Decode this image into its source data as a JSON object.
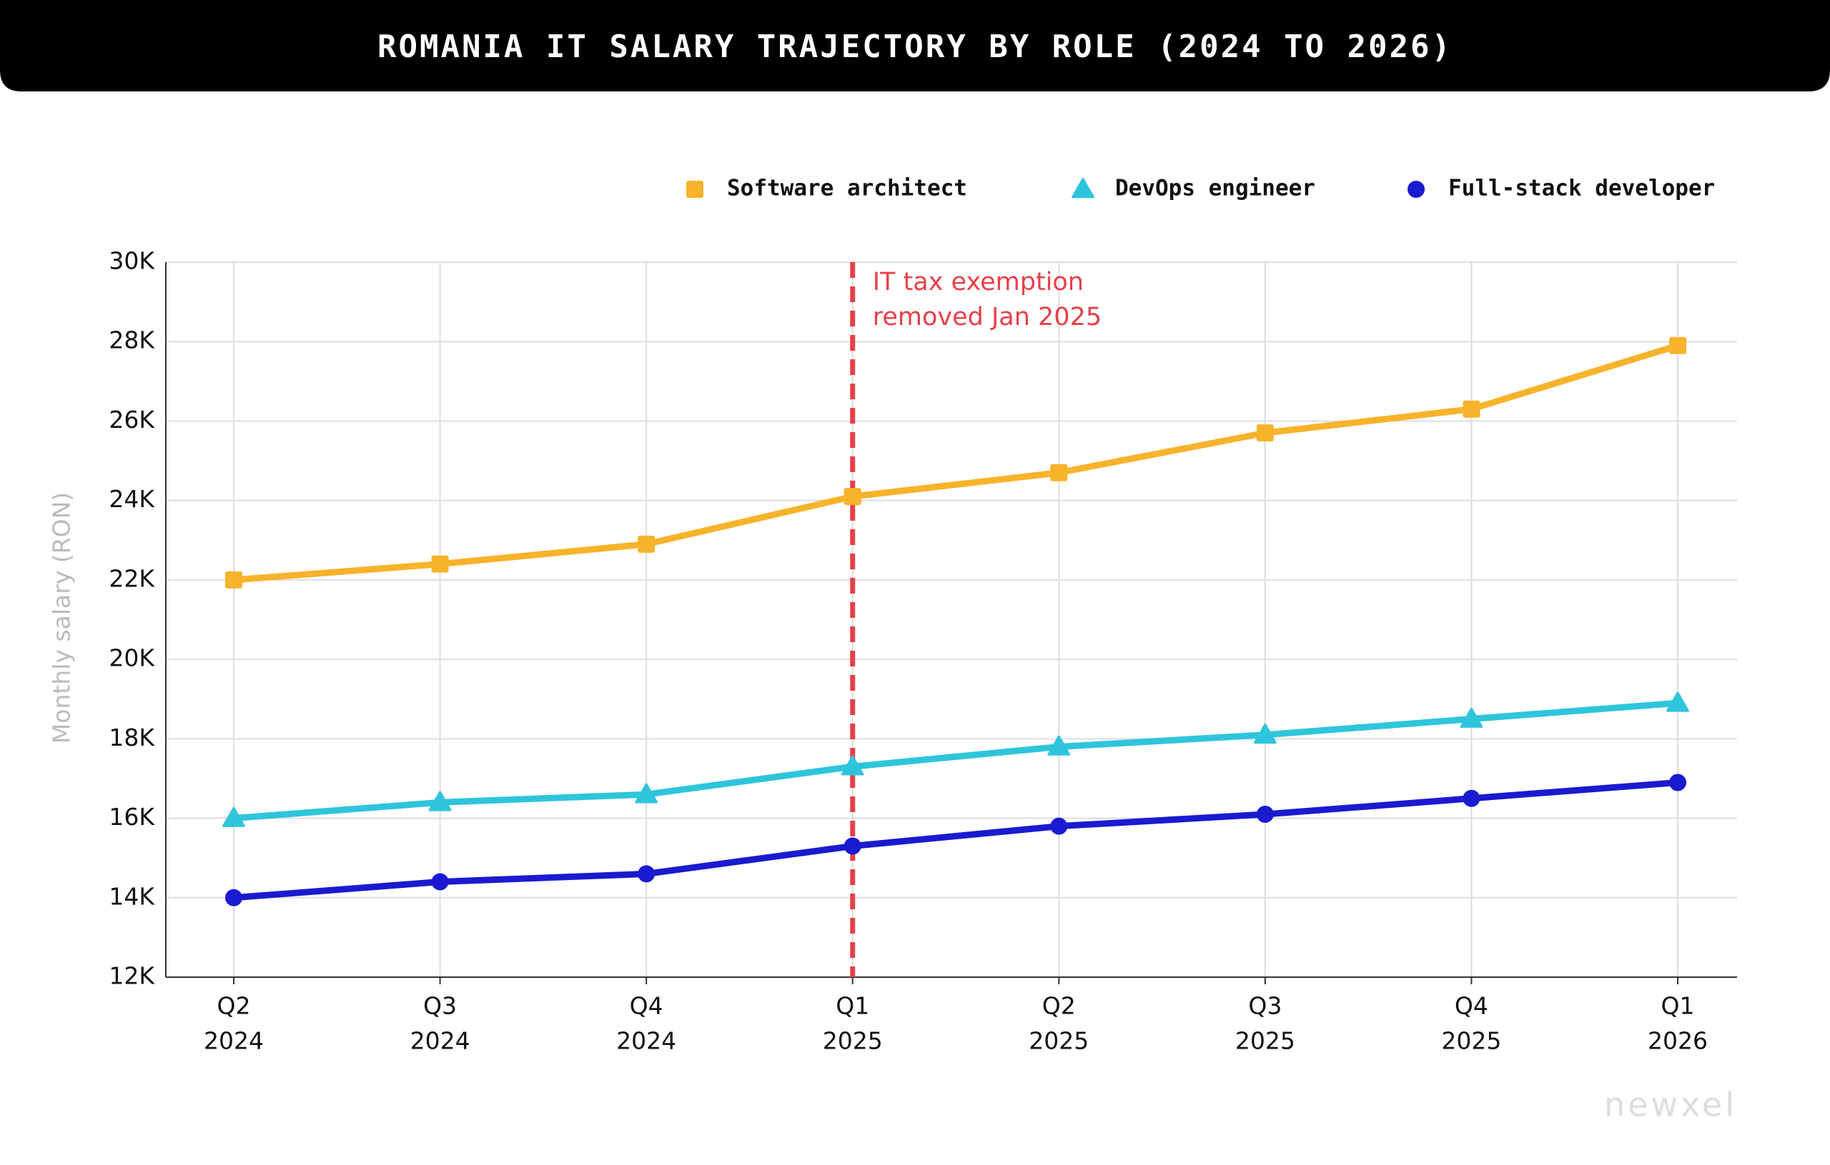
{
  "chart_data": {
    "type": "line",
    "title": "ROMANIA IT SALARY TRAJECTORY BY ROLE (2024 TO 2026)",
    "y_label": "Monthly salary (RON)",
    "categories": [
      [
        "Q2",
        "2024"
      ],
      [
        "Q3",
        "2024"
      ],
      [
        "Q4",
        "2024"
      ],
      [
        "Q1",
        "2025"
      ],
      [
        "Q2",
        "2025"
      ],
      [
        "Q3",
        "2025"
      ],
      [
        "Q4",
        "2025"
      ],
      [
        "Q1",
        "2026"
      ]
    ],
    "series": [
      {
        "name": "Software architect",
        "color": "#f7b32b",
        "marker": "square",
        "values": [
          22000,
          22400,
          22900,
          24100,
          24700,
          25700,
          26300,
          27900
        ]
      },
      {
        "name": "DevOps engineer",
        "color": "#2ec5dc",
        "marker": "triangle",
        "values": [
          16000,
          16400,
          16600,
          17300,
          17800,
          18100,
          18500,
          18900
        ]
      },
      {
        "name": "Full-stack developer",
        "color": "#1a1ad0",
        "marker": "circle",
        "values": [
          14000,
          14400,
          14600,
          15300,
          15800,
          16100,
          16500,
          16900
        ]
      }
    ],
    "ylim": [
      12000,
      30000
    ],
    "yticks": [
      {
        "value": 12000,
        "label": "12K"
      },
      {
        "value": 14000,
        "label": "14K"
      },
      {
        "value": 16000,
        "label": "16K"
      },
      {
        "value": 18000,
        "label": "18K"
      },
      {
        "value": 20000,
        "label": "20K"
      },
      {
        "value": 22000,
        "label": "22K"
      },
      {
        "value": 24000,
        "label": "24K"
      },
      {
        "value": 26000,
        "label": "26K"
      },
      {
        "value": 28000,
        "label": "28K"
      },
      {
        "value": 30000,
        "label": "30K"
      }
    ],
    "grid": true,
    "legend": "top-right",
    "annotation": {
      "text": [
        "IT tax exemption",
        "removed Jan 2025"
      ],
      "color": "#e8404a"
    },
    "watermark": "newxel"
  }
}
